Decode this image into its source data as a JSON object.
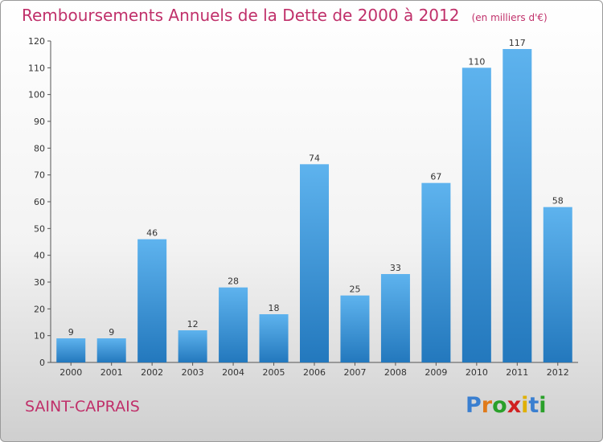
{
  "title": "Remboursements Annuels de la Dette de 2000 à 2012",
  "unit": "(en milliers d'€)",
  "commune": "SAINT-CAPRAIS",
  "logo": {
    "letters": [
      "P",
      "r",
      "o",
      "x",
      "i",
      "t",
      "i"
    ],
    "colors": [
      "#3a7fd0",
      "#e07a1a",
      "#2aa02a",
      "#d02020",
      "#e0b000",
      "#3a7fd0",
      "#2aa02a"
    ]
  },
  "colors": {
    "bar_light": "#5eb3ee",
    "bar_dark": "#2378bd",
    "title": "#c0306a"
  },
  "chart_data": {
    "type": "bar",
    "categories": [
      "2000",
      "2001",
      "2002",
      "2003",
      "2004",
      "2005",
      "2006",
      "2007",
      "2008",
      "2009",
      "2010",
      "2011",
      "2012"
    ],
    "values": [
      9,
      9,
      46,
      12,
      28,
      18,
      74,
      25,
      33,
      67,
      110,
      117,
      58
    ],
    "title": "Remboursements Annuels de la Dette de 2000 à 2012",
    "xlabel": "",
    "ylabel": "",
    "ylim": [
      0,
      120
    ],
    "yticks": [
      0,
      10,
      20,
      30,
      40,
      50,
      60,
      70,
      80,
      90,
      100,
      110,
      120
    ],
    "grid": false,
    "data_labels": true
  }
}
